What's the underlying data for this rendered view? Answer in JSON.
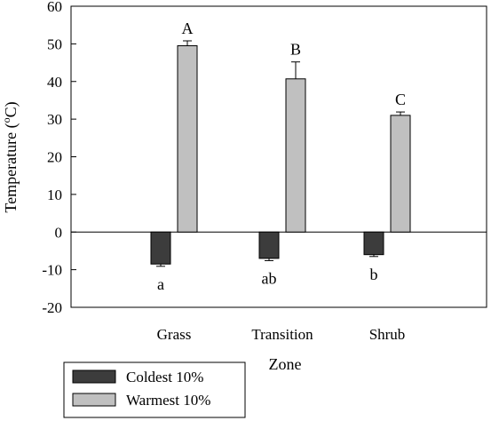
{
  "chart_data": {
    "type": "bar",
    "xlabel": "Zone",
    "ylabel_main": "Temperature (",
    "ylabel_sup": "o",
    "ylabel_unit": "C)",
    "ylim": [
      -20,
      60
    ],
    "yticks": [
      -20,
      -10,
      0,
      10,
      20,
      30,
      40,
      50,
      60
    ],
    "categories": [
      "Grass",
      "Transition",
      "Shrub"
    ],
    "series": [
      {
        "name": "Coldest 10%",
        "color": "#3c3c3c",
        "values": [
          -8.5,
          -7.0,
          -6.0
        ],
        "errors": [
          0.6,
          0.6,
          0.5
        ],
        "sig_labels": [
          "a",
          "ab",
          "b"
        ]
      },
      {
        "name": "Warmest 10%",
        "color": "#c0c0c0",
        "values": [
          49.5,
          40.7,
          31.0
        ],
        "errors": [
          1.3,
          4.5,
          0.9
        ],
        "sig_labels": [
          "A",
          "B",
          "C"
        ]
      }
    ],
    "legend_placement": "bottom-left"
  }
}
